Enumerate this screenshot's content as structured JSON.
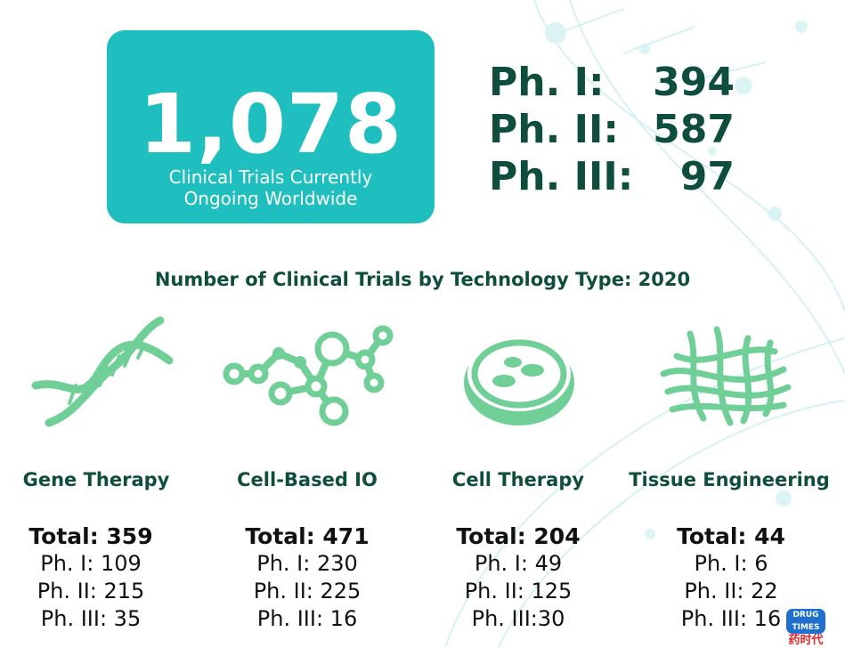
{
  "hero": {
    "number": "1,078",
    "caption_line1": "Clinical Trials Currently",
    "caption_line2": "Ongoing Worldwide"
  },
  "phase_summary": [
    {
      "label": "Ph. I:",
      "value": "394"
    },
    {
      "label": "Ph. II:",
      "value": "587"
    },
    {
      "label": "Ph. III:",
      "value": "97"
    }
  ],
  "section_title": "Number of Clinical Trials by Technology Type: 2020",
  "technologies": [
    {
      "name": "Gene Therapy",
      "icon": "dna-icon",
      "total": "Total: 359",
      "ph1": "Ph. I: 109",
      "ph2": "Ph. II: 215",
      "ph3": "Ph. III: 35"
    },
    {
      "name": "Cell-Based IO",
      "icon": "molecule-network-icon",
      "total": "Total: 471",
      "ph1": "Ph. I: 230",
      "ph2": "Ph. II: 225",
      "ph3": "Ph. III: 16"
    },
    {
      "name": "Cell Therapy",
      "icon": "petri-dish-icon",
      "total": "Total: 204",
      "ph1": "Ph. I: 49",
      "ph2": "Ph. II: 125",
      "ph3": "Ph. III:30"
    },
    {
      "name": "Tissue Engineering",
      "icon": "tissue-fibers-icon",
      "total": "Total: 44",
      "ph1": "Ph. I: 6",
      "ph2": "Ph. II: 22",
      "ph3": "Ph. III: 16"
    }
  ],
  "watermark": {
    "top": "DRUG TIMES",
    "bottom": "药时代"
  },
  "colors": {
    "accent_teal": "#1fbfbf",
    "dark_green": "#0f4d3c",
    "icon_green": "#6fcf97"
  }
}
